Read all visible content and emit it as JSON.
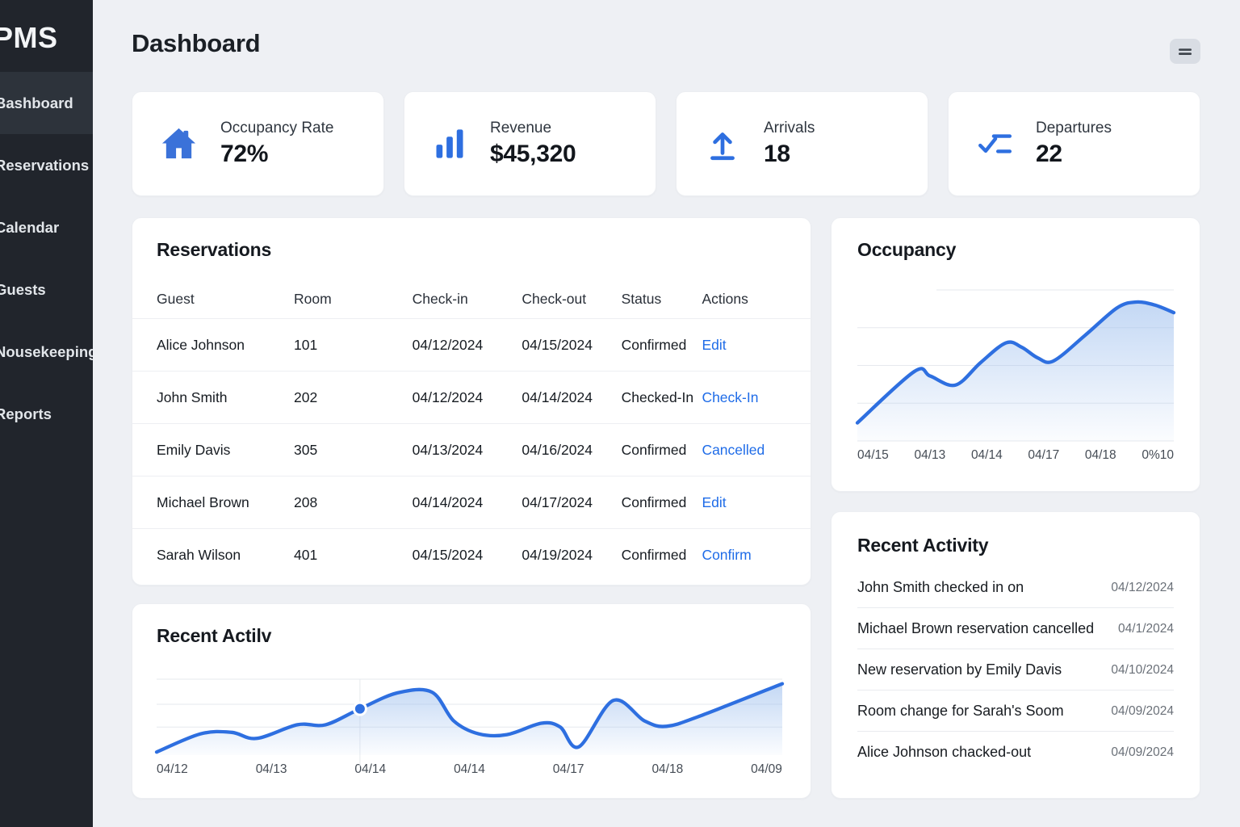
{
  "colors": {
    "accent": "#2e6fe0",
    "link": "#1f6ce8",
    "icon_blue": "#3b72d9",
    "sidebar_bg": "#21252c",
    "sidebar_active": "#2d333b",
    "page_bg": "#eef0f4",
    "chart_fill": "#9fc0ee"
  },
  "sidebar": {
    "logo": "PMS",
    "items": [
      {
        "label": "Bashboard",
        "active": true
      },
      {
        "label": "Reservations",
        "active": false
      },
      {
        "label": "Calendar",
        "active": false
      },
      {
        "label": "Guests",
        "active": false
      },
      {
        "label": "Nousekeeping",
        "active": false
      },
      {
        "label": "Reports",
        "active": false
      }
    ]
  },
  "header": {
    "title": "Dashboard",
    "menu_icon": "hamburger-icon"
  },
  "stats": [
    {
      "icon": "house-icon",
      "label": "Occupancy Rate",
      "value": "72%"
    },
    {
      "icon": "bar-chart-icon",
      "label": "Revenue",
      "value": "$45,320"
    },
    {
      "icon": "arrival-arrow-icon",
      "label": "Arrivals",
      "value": "18"
    },
    {
      "icon": "departure-checklist-icon",
      "label": "Departures",
      "value": "22"
    }
  ],
  "reservations": {
    "title": "Reservations",
    "columns": [
      "Guest",
      "Room",
      "Check-in",
      "Check-out",
      "Status",
      "Actions"
    ],
    "rows": [
      {
        "guest": "Alice Johnson",
        "room": "101",
        "check_in": "04/12/2024",
        "check_out": "04/15/2024",
        "status": "Confirmed",
        "action": "Edit"
      },
      {
        "guest": "John Smith",
        "room": "202",
        "check_in": "04/12/2024",
        "check_out": "04/14/2024",
        "status": "Checked-In",
        "action": "Check-In"
      },
      {
        "guest": "Emily Davis",
        "room": "305",
        "check_in": "04/13/2024",
        "check_out": "04/16/2024",
        "status": "Confirmed",
        "action": "Cancelled"
      },
      {
        "guest": "Michael Brown",
        "room": "208",
        "check_in": "04/14/2024",
        "check_out": "04/17/2024",
        "status": "Confirmed",
        "action": "Edit"
      },
      {
        "guest": "Sarah Wilson",
        "room": "401",
        "check_in": "04/15/2024",
        "check_out": "04/19/2024",
        "status": "Confirmed",
        "action": "Confirm"
      }
    ]
  },
  "activity": {
    "title": "Recent Activity",
    "items": [
      {
        "text": "John Smith checked in on",
        "date": "04/12/2024"
      },
      {
        "text": "Michael Brown reservation cancelled",
        "date": "04/1/2024"
      },
      {
        "text": "New reservation by Emily Davis",
        "date": "04/10/2024"
      },
      {
        "text": "Room change for Sarah's Soom",
        "date": "04/09/2024"
      },
      {
        "text": "Alice Johnson chacked-out",
        "date": "04/09/2024"
      }
    ]
  },
  "chart_data": [
    {
      "id": "occupancy",
      "type": "area",
      "title": "Occupancy",
      "xlabel": "",
      "ylabel": "",
      "ylim": [
        0,
        100
      ],
      "legend": "none",
      "grid": "horizontal",
      "x_tick_labels": [
        "04/15",
        "04/13",
        "04/14",
        "04/17",
        "04/18",
        "0%10"
      ],
      "points": [
        [
          0,
          12
        ],
        [
          0.18,
          46
        ],
        [
          0.23,
          43
        ],
        [
          0.31,
          37
        ],
        [
          0.39,
          52
        ],
        [
          0.47,
          65
        ],
        [
          0.52,
          62
        ],
        [
          0.57,
          55
        ],
        [
          0.62,
          53
        ],
        [
          0.72,
          70
        ],
        [
          0.82,
          88
        ],
        [
          0.88,
          92
        ],
        [
          0.94,
          90
        ],
        [
          1,
          85
        ]
      ],
      "gridlines": [
        [
          0,
          0.25
        ],
        [
          0.25,
          0
        ],
        [
          0.5,
          0
        ],
        [
          0.75,
          0
        ],
        [
          1,
          0
        ]
      ]
    },
    {
      "id": "recent-activity-trend",
      "type": "area",
      "title": "Recent Actilv",
      "xlabel": "",
      "ylabel": "",
      "ylim": [
        0,
        100
      ],
      "legend": "none",
      "grid": "horizontal",
      "x_tick_labels": [
        "04/12",
        "04/13",
        "04/14",
        "04/14",
        "04/17",
        "04/18",
        "04/09"
      ],
      "points": [
        [
          0,
          4
        ],
        [
          0.07,
          28
        ],
        [
          0.12,
          30
        ],
        [
          0.16,
          22
        ],
        [
          0.225,
          40
        ],
        [
          0.27,
          40
        ],
        [
          0.325,
          61
        ],
        [
          0.385,
          82
        ],
        [
          0.44,
          83
        ],
        [
          0.475,
          45
        ],
        [
          0.515,
          28
        ],
        [
          0.56,
          27
        ],
        [
          0.615,
          42
        ],
        [
          0.645,
          37
        ],
        [
          0.675,
          11
        ],
        [
          0.73,
          72
        ],
        [
          0.78,
          45
        ],
        [
          0.815,
          38
        ],
        [
          0.87,
          52
        ],
        [
          1,
          94
        ]
      ],
      "gridlines": [
        [
          0,
          0
        ],
        [
          0.33,
          0
        ],
        [
          0.63,
          0
        ]
      ],
      "vline_x": 0.325,
      "marker": {
        "x": 0.325,
        "value": 61
      }
    }
  ]
}
